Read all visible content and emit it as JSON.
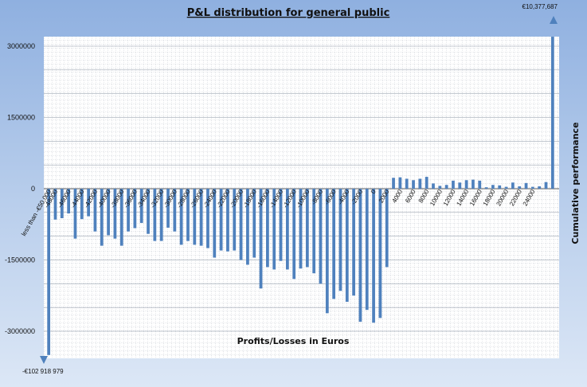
{
  "chart_data": {
    "type": "bar",
    "title": "P&L distribution  for general public",
    "xlabel": "Profits/Losses in Euros",
    "ylabel": "Cumulative performance",
    "ylim": [
      -3500000,
      3200000
    ],
    "yticks": [
      3000000,
      1500000,
      0,
      -1500000,
      -3000000
    ],
    "ytick_labels": [
      "3000000",
      "1500000",
      "0",
      "-1500000",
      "-3000000"
    ],
    "grid": true,
    "bar_color": "#4f81bd",
    "annotations": {
      "top_bar": "€10,377,687",
      "bottom_bar": "-€102  918 979"
    },
    "tick_labels": [
      {
        "label": "less than -€50,000",
        "index": 0
      },
      {
        "label": "-48000",
        "index": 1
      },
      {
        "label": "-46000",
        "index": 3
      },
      {
        "label": "-44000",
        "index": 5
      },
      {
        "label": "-42000",
        "index": 7
      },
      {
        "label": "-40000",
        "index": 9
      },
      {
        "label": "-38000",
        "index": 11
      },
      {
        "label": "-36000",
        "index": 13
      },
      {
        "label": "-34000",
        "index": 15
      },
      {
        "label": "-32000",
        "index": 17
      },
      {
        "label": "-30000",
        "index": 19
      },
      {
        "label": "-28000",
        "index": 21
      },
      {
        "label": "-26000",
        "index": 23
      },
      {
        "label": "-24000",
        "index": 25
      },
      {
        "label": "-22000",
        "index": 27
      },
      {
        "label": "-20000",
        "index": 29
      },
      {
        "label": "-18000",
        "index": 31
      },
      {
        "label": "-16000",
        "index": 33
      },
      {
        "label": "-14000",
        "index": 35
      },
      {
        "label": "-12000",
        "index": 37
      },
      {
        "label": "-10000",
        "index": 39
      },
      {
        "label": "-8000",
        "index": 41
      },
      {
        "label": "-6000",
        "index": 43
      },
      {
        "label": "-4000",
        "index": 45
      },
      {
        "label": "-2000",
        "index": 47
      },
      {
        "label": "0",
        "index": 49
      },
      {
        "label": "2000",
        "index": 51
      },
      {
        "label": "4000",
        "index": 53
      },
      {
        "label": "6000",
        "index": 55
      },
      {
        "label": "8000",
        "index": 57
      },
      {
        "label": "10000",
        "index": 59
      },
      {
        "label": "12000",
        "index": 61
      },
      {
        "label": "14000",
        "index": 63
      },
      {
        "label": "16000",
        "index": 65
      },
      {
        "label": "18000",
        "index": 67
      },
      {
        "label": "20000",
        "index": 69
      },
      {
        "label": "22000",
        "index": 71
      },
      {
        "label": "24000",
        "index": 73
      }
    ],
    "values": [
      -3500000,
      -650000,
      -620000,
      -520000,
      -1050000,
      -640000,
      -580000,
      -900000,
      -1200000,
      -980000,
      -1050000,
      -1200000,
      -900000,
      -830000,
      -720000,
      -950000,
      -1100000,
      -1100000,
      -820000,
      -900000,
      -1180000,
      -1100000,
      -1180000,
      -1200000,
      -1250000,
      -1450000,
      -1300000,
      -1320000,
      -1300000,
      -1500000,
      -1600000,
      -1450000,
      -2100000,
      -1650000,
      -1700000,
      -1520000,
      -1700000,
      -1900000,
      -1680000,
      -1650000,
      -1780000,
      -2000000,
      -2620000,
      -2320000,
      -2150000,
      -2380000,
      -2250000,
      -2800000,
      -2550000,
      -2820000,
      -2720000,
      -1650000,
      230000,
      240000,
      210000,
      180000,
      210000,
      250000,
      110000,
      60000,
      80000,
      170000,
      130000,
      180000,
      190000,
      170000,
      30000,
      80000,
      70000,
      40000,
      130000,
      50000,
      120000,
      40000,
      50000,
      140000,
      3200000
    ]
  }
}
